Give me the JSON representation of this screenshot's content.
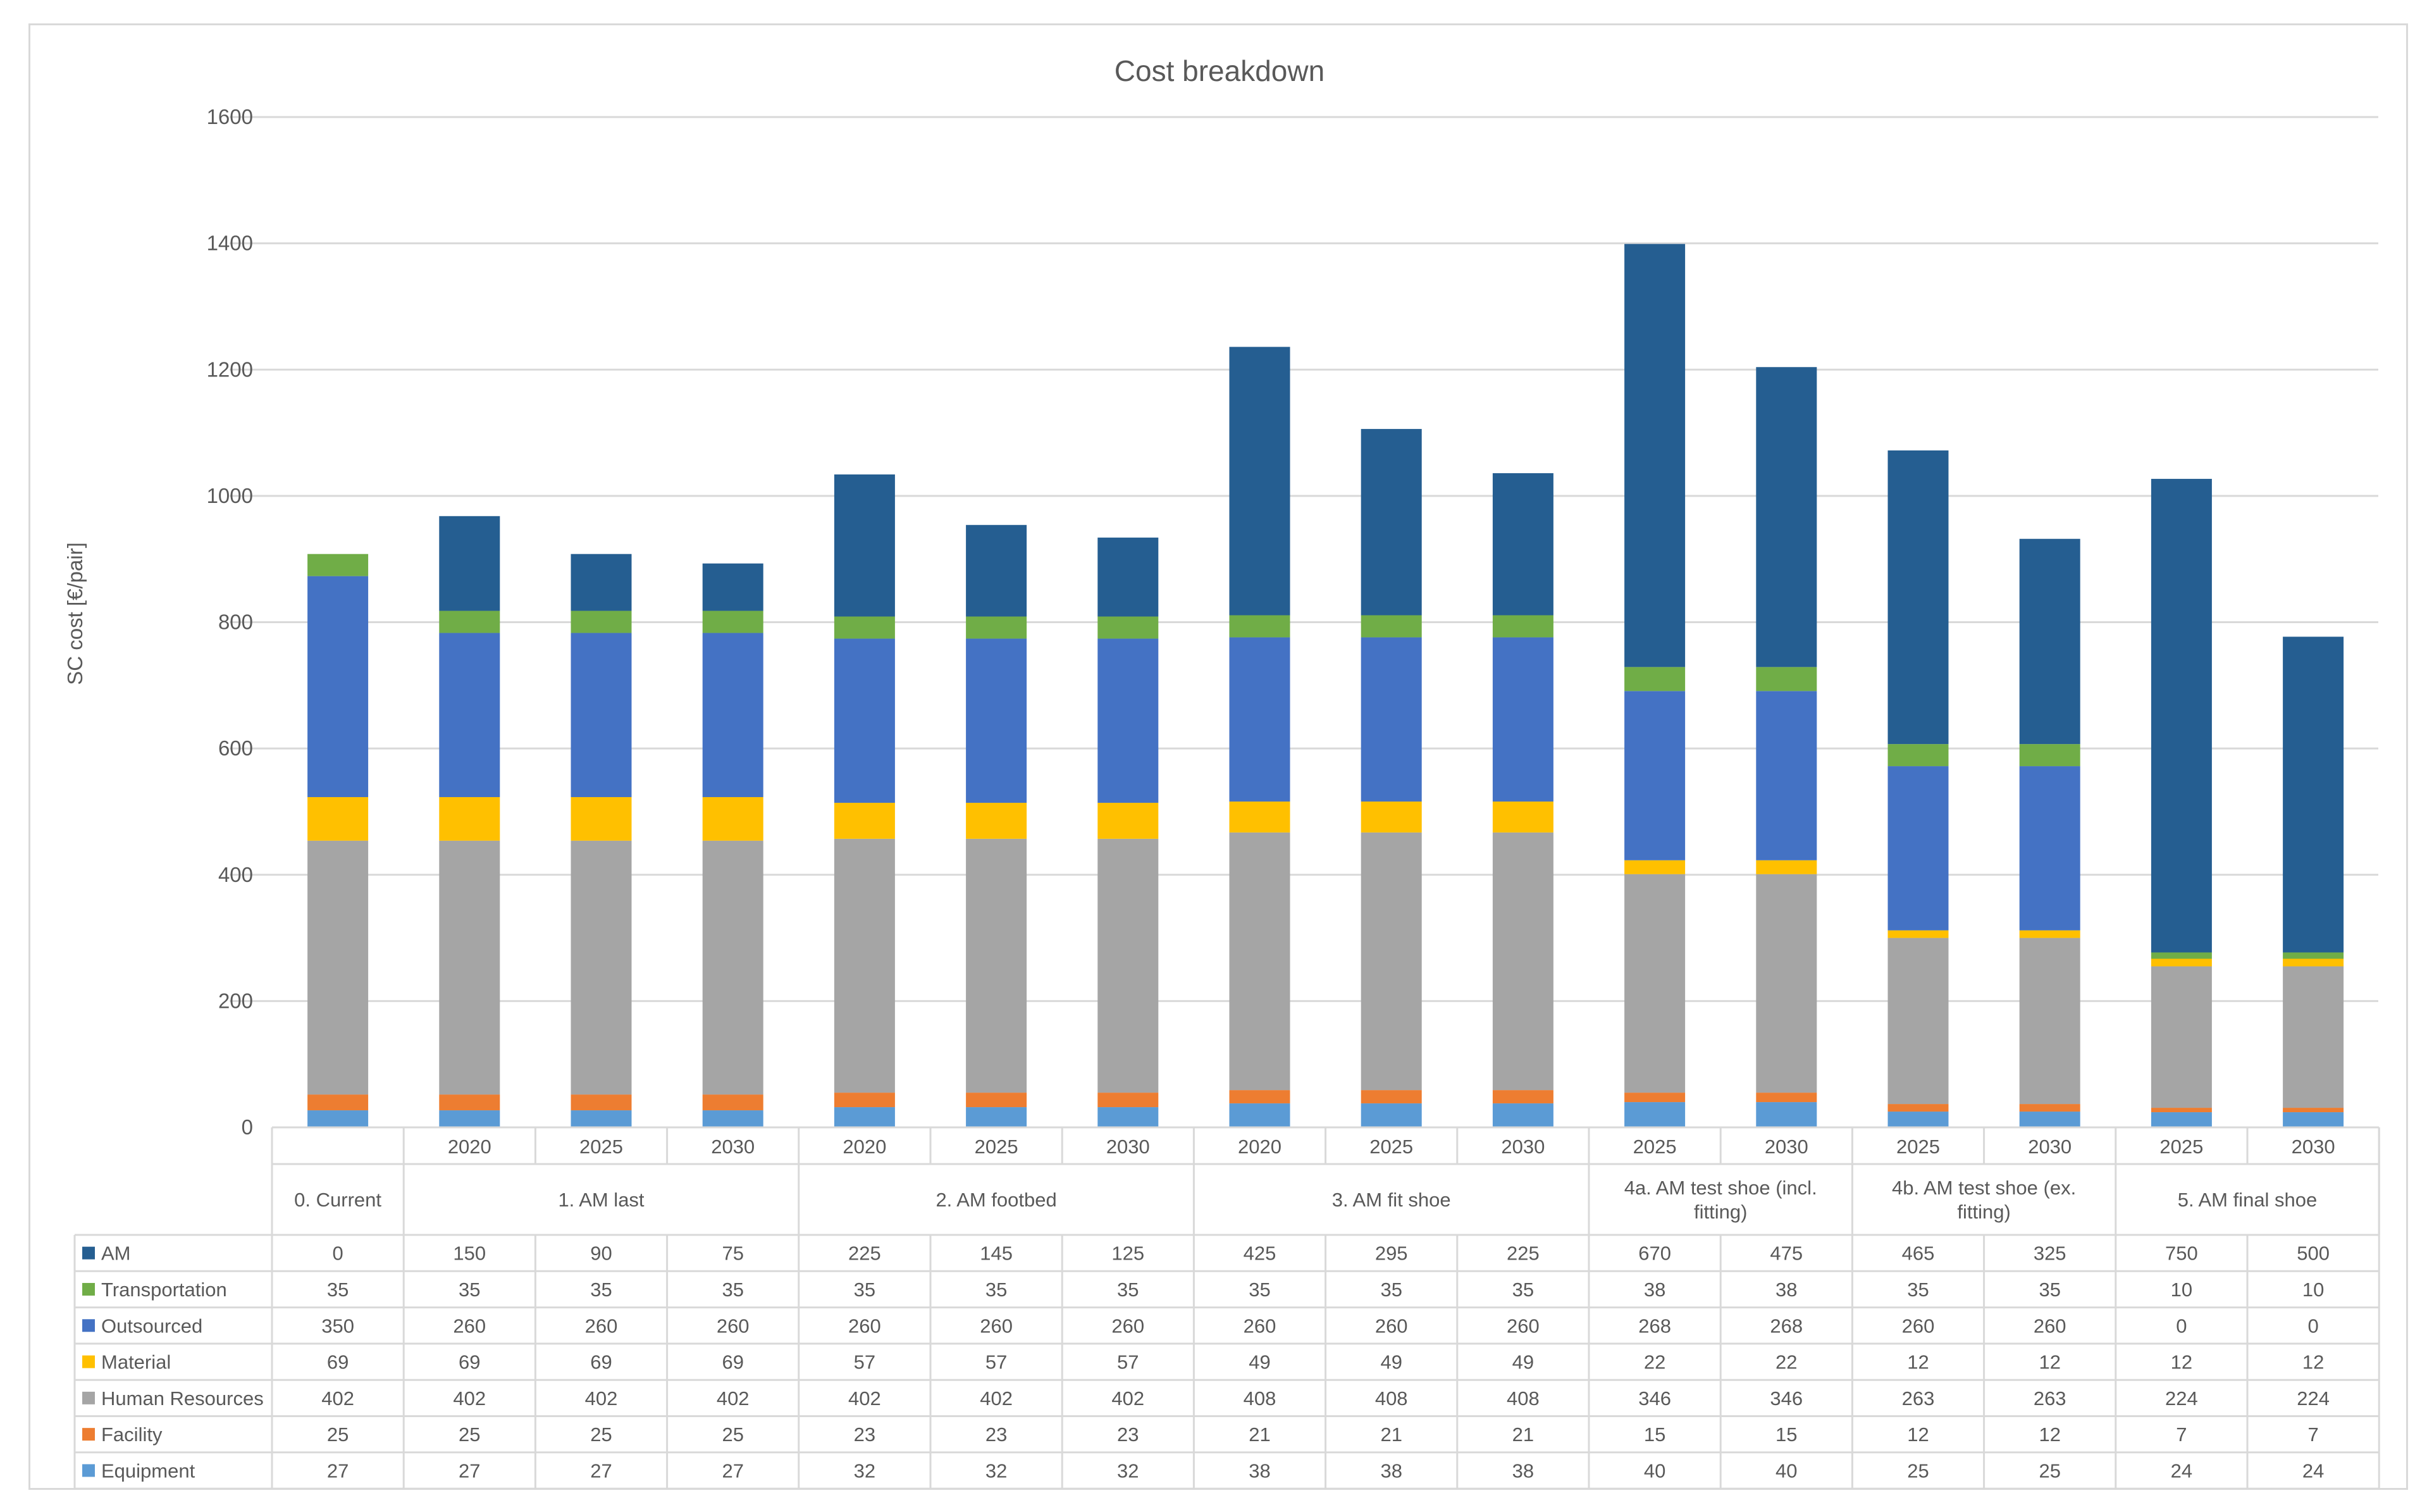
{
  "chart_data": {
    "type": "bar",
    "stacked": true,
    "title": "Cost breakdown",
    "ylabel": "SC cost [€/pair]",
    "xlabel": "",
    "ylim": [
      0,
      1600
    ],
    "yticks": [
      0,
      200,
      400,
      600,
      800,
      1000,
      1200,
      1400,
      1600
    ],
    "grid": true,
    "legend": "in data table",
    "groups": [
      {
        "label": "0. Current",
        "columns": 1
      },
      {
        "label": "1. AM last",
        "columns": 3
      },
      {
        "label": "2. AM footbed",
        "columns": 3
      },
      {
        "label": "3. AM fit shoe",
        "columns": 3
      },
      {
        "label": "4a. AM test shoe (incl. fitting)",
        "label_lines": [
          "4a. AM test shoe (incl.",
          "fitting)"
        ],
        "columns": 2
      },
      {
        "label": "4b. AM test shoe (ex. fitting)",
        "label_lines": [
          "4b. AM test shoe (ex.",
          "fitting)"
        ],
        "columns": 2
      },
      {
        "label": "5. AM final shoe",
        "columns": 2
      }
    ],
    "categories": [
      "",
      "2020",
      "2025",
      "2030",
      "2020",
      "2025",
      "2030",
      "2020",
      "2025",
      "2030",
      "2025",
      "2030",
      "2025",
      "2030",
      "2025",
      "2030"
    ],
    "series": [
      {
        "name": "Equipment",
        "color": "#5b9bd5",
        "values": [
          27,
          27,
          27,
          27,
          32,
          32,
          32,
          38,
          38,
          38,
          40,
          40,
          25,
          25,
          24,
          24
        ]
      },
      {
        "name": "Facility",
        "color": "#ed7d31",
        "values": [
          25,
          25,
          25,
          25,
          23,
          23,
          23,
          21,
          21,
          21,
          15,
          15,
          12,
          12,
          7,
          7
        ]
      },
      {
        "name": "Human Resources",
        "color": "#a5a5a5",
        "values": [
          402,
          402,
          402,
          402,
          402,
          402,
          402,
          408,
          408,
          408,
          346,
          346,
          263,
          263,
          224,
          224
        ]
      },
      {
        "name": "Material",
        "color": "#ffc000",
        "values": [
          69,
          69,
          69,
          69,
          57,
          57,
          57,
          49,
          49,
          49,
          22,
          22,
          12,
          12,
          12,
          12
        ]
      },
      {
        "name": "Outsourced",
        "color": "#4472c4",
        "values": [
          350,
          260,
          260,
          260,
          260,
          260,
          260,
          260,
          260,
          260,
          268,
          268,
          260,
          260,
          0,
          0
        ]
      },
      {
        "name": "Transportation",
        "color": "#70ad47",
        "values": [
          35,
          35,
          35,
          35,
          35,
          35,
          35,
          35,
          35,
          35,
          38,
          38,
          35,
          35,
          10,
          10
        ]
      },
      {
        "name": "AM",
        "color": "#255e91",
        "values": [
          0,
          150,
          90,
          75,
          225,
          145,
          125,
          425,
          295,
          225,
          670,
          475,
          465,
          325,
          750,
          500
        ]
      }
    ],
    "table_row_order": [
      "AM",
      "Transportation",
      "Outsourced",
      "Material",
      "Human Resources",
      "Facility",
      "Equipment"
    ]
  }
}
